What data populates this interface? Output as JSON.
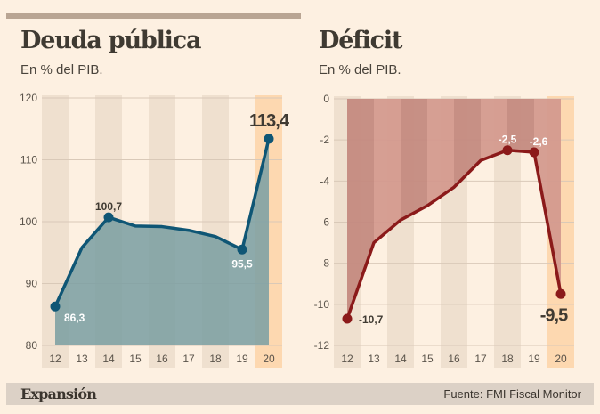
{
  "chart_data": [
    {
      "type": "area",
      "title": "Deuda pública",
      "subtitle": "En % del PIB.",
      "categories": [
        "12",
        "13",
        "14",
        "15",
        "16",
        "17",
        "18",
        "19",
        "20"
      ],
      "values": [
        86.3,
        95.8,
        100.7,
        99.3,
        99.2,
        98.6,
        97.6,
        95.5,
        113.4
      ],
      "data_labels": {
        "0": "86,3",
        "2": "100,7",
        "7": "95,5",
        "8": "113,4"
      },
      "yticks": [
        "80",
        "90",
        "100",
        "110",
        "120"
      ],
      "ylim": [
        80,
        120
      ],
      "grid": true,
      "highlight_category": "20",
      "line_color": "#0f5675",
      "fill_color": "#7d9fa3"
    },
    {
      "type": "area",
      "title": "Déficit",
      "subtitle": "En % del PIB.",
      "categories": [
        "12",
        "13",
        "14",
        "15",
        "16",
        "17",
        "18",
        "19",
        "20"
      ],
      "values": [
        -10.7,
        -7.0,
        -5.9,
        -5.2,
        -4.3,
        -3.0,
        -2.5,
        -2.6,
        -9.5
      ],
      "data_labels": {
        "0": "-10,7",
        "6": "-2,5",
        "7": "-2,6",
        "8": "-9,5"
      },
      "yticks": [
        "0",
        "-2",
        "-4",
        "-6",
        "-8",
        "-10",
        "-12"
      ],
      "ylim": [
        -12,
        0
      ],
      "grid": true,
      "highlight_category": "20",
      "line_color": "#8b1a1a",
      "fill_color": "#c98c82"
    }
  ],
  "footer": {
    "logo": "Expansión",
    "source": "Fuente: FMI Fiscal Monitor"
  }
}
